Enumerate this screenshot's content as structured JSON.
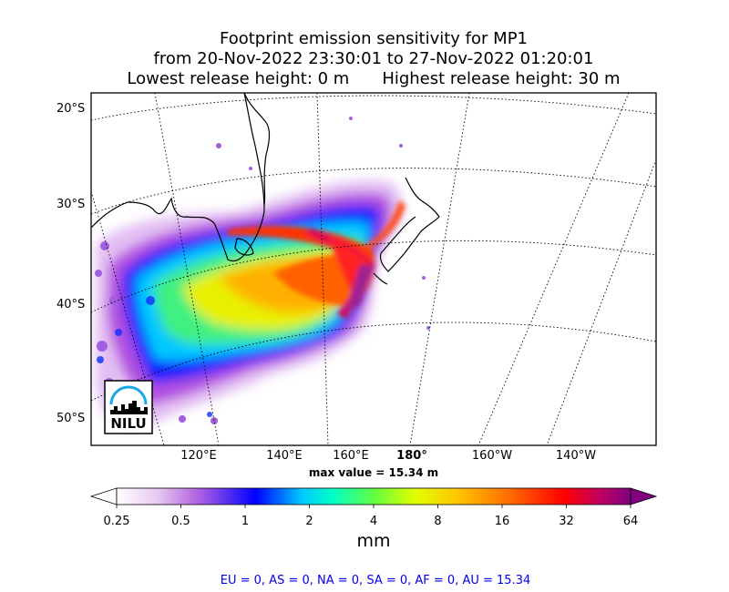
{
  "title": {
    "line1": "Footprint emission sensitivity for MP1",
    "line2": "from 20-Nov-2022 23:30:01 to 27-Nov-2022 01:20:01",
    "lowest": "Lowest release height: 0 m",
    "highest": "Highest release height: 30 m"
  },
  "lat_labels": [
    "20°S",
    "30°S",
    "40°S",
    "50°S"
  ],
  "lon_labels": [
    "120°E",
    "140°E",
    "160°E",
    "180°",
    "160°W",
    "140°W"
  ],
  "max_value": "max value = 15.34 m",
  "logo": {
    "text": "NILU",
    "name": "nilu-logo"
  },
  "colorbar": {
    "ticks": [
      "0.25",
      "0.5",
      "1",
      "2",
      "4",
      "8",
      "16",
      "32",
      "64"
    ],
    "unit": "mm",
    "colors": [
      "#ffffff",
      "#e8c8f0",
      "#b060e0",
      "#0000ff",
      "#00c8ff",
      "#00ffc8",
      "#60ff40",
      "#e0ff00",
      "#ffc800",
      "#ff7000",
      "#ff0000",
      "#c00060",
      "#800080"
    ]
  },
  "regions": "EU = 0,  AS = 0,  NA = 0,  SA = 0,  AF = 0,  AU = 15.34"
}
